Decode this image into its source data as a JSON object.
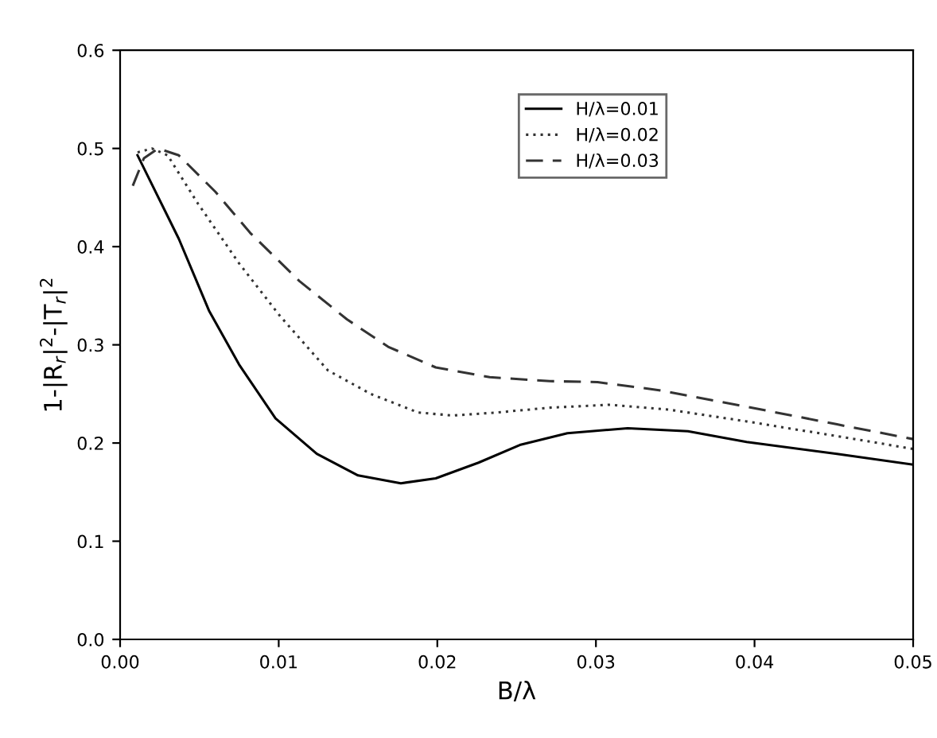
{
  "chart_data": {
    "type": "line",
    "xlabel": "B/λ",
    "ylabel": "1-|R$_{r}$|$^{2}$-|T$_{r}$|$^{2}$",
    "xlim": [
      0,
      0.05
    ],
    "ylim": [
      0,
      0.6
    ],
    "xticks": [
      {
        "value": 0,
        "label": "0.00"
      },
      0.01,
      0.02,
      0.03,
      0.04,
      0.05
    ],
    "yticks": [
      {
        "value": 0,
        "label": "0.0"
      },
      0.1,
      0.2,
      0.3,
      0.4,
      0.5,
      0.6
    ],
    "grid": false,
    "legend": "top right",
    "series": [
      {
        "name": "H/λ=0.01",
        "color": "#000000",
        "line_style": "solid",
        "x": [
          0.0011,
          0.0037,
          0.0056,
          0.0075,
          0.0098,
          0.0124,
          0.015,
          0.0177,
          0.0199,
          0.0226,
          0.0252,
          0.0282,
          0.032,
          0.0358,
          0.0395,
          0.0452,
          0.05
        ],
        "values": [
          0.493,
          0.408,
          0.335,
          0.28,
          0.225,
          0.189,
          0.167,
          0.159,
          0.164,
          0.18,
          0.198,
          0.21,
          0.215,
          0.212,
          0.201,
          0.189,
          0.178
        ]
      },
      {
        "name": "H/λ=0.02",
        "color": "#333333",
        "line_style": "dotted",
        "x": [
          0.0011,
          0.002,
          0.003,
          0.0049,
          0.0075,
          0.0101,
          0.0131,
          0.0158,
          0.0188,
          0.021,
          0.0237,
          0.0271,
          0.0309,
          0.0346,
          0.0395,
          0.0452,
          0.05
        ],
        "values": [
          0.496,
          0.5,
          0.493,
          0.444,
          0.383,
          0.329,
          0.274,
          0.25,
          0.231,
          0.228,
          0.231,
          0.236,
          0.239,
          0.234,
          0.222,
          0.207,
          0.194
        ]
      },
      {
        "name": "H/λ=0.03",
        "color": "#333333",
        "line_style": "dashed",
        "x": [
          0.0008,
          0.0015,
          0.0024,
          0.0037,
          0.006,
          0.0082,
          0.0113,
          0.0143,
          0.0169,
          0.0199,
          0.0233,
          0.0271,
          0.0301,
          0.0339,
          0.0395,
          0.0452,
          0.05
        ],
        "values": [
          0.462,
          0.49,
          0.5,
          0.493,
          0.456,
          0.414,
          0.365,
          0.326,
          0.298,
          0.277,
          0.267,
          0.263,
          0.262,
          0.254,
          0.237,
          0.219,
          0.204
        ]
      }
    ]
  }
}
